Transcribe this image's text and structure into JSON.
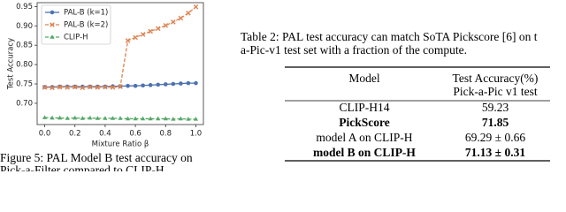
{
  "chart_data": {
    "type": "line",
    "xlabel": "Mixture Ratio β",
    "ylabel": "Test Accuracy",
    "x": [
      0,
      0.05,
      0.1,
      0.15,
      0.2,
      0.25,
      0.3,
      0.35,
      0.4,
      0.45,
      0.5,
      0.55,
      0.6,
      0.65,
      0.7,
      0.75,
      0.8,
      0.85,
      0.9,
      0.95,
      1.0
    ],
    "series": [
      {
        "name": "PAL-B (k=1)",
        "color": "#4c72b0",
        "marker": "circle",
        "dash": false,
        "values": [
          0.742,
          0.742,
          0.743,
          0.743,
          0.743,
          0.743,
          0.743,
          0.743,
          0.743,
          0.744,
          0.744,
          0.745,
          0.745,
          0.746,
          0.747,
          0.748,
          0.749,
          0.75,
          0.751,
          0.752,
          0.752
        ]
      },
      {
        "name": "PAL-B (k=2)",
        "color": "#dd8452",
        "marker": "x",
        "dash": true,
        "values": [
          0.741,
          0.74,
          0.742,
          0.741,
          0.742,
          0.74,
          0.742,
          0.741,
          0.742,
          0.741,
          0.743,
          0.862,
          0.87,
          0.878,
          0.886,
          0.893,
          0.901,
          0.91,
          0.92,
          0.933,
          0.949
        ]
      },
      {
        "name": "CLIP-H",
        "color": "#55a868",
        "marker": "triangle",
        "dash": true,
        "values": [
          0.663,
          0.662,
          0.662,
          0.661,
          0.662,
          0.661,
          0.662,
          0.661,
          0.661,
          0.661,
          0.661,
          0.66,
          0.66,
          0.66,
          0.66,
          0.66,
          0.66,
          0.659,
          0.66,
          0.659,
          0.659
        ]
      }
    ],
    "xlim": [
      -0.05,
      1.05
    ],
    "ylim": [
      0.645,
      0.96
    ],
    "xticks": [
      {
        "value": 0,
        "label": "0.0"
      },
      0.2,
      0.4,
      0.6,
      0.8,
      {
        "value": 1,
        "label": "1.0"
      }
    ],
    "yticks": [
      {
        "value": 0.7,
        "label": "0.70"
      },
      0.75,
      {
        "value": 0.8,
        "label": "0.80"
      },
      0.85,
      {
        "value": 0.9,
        "label": "0.90"
      },
      0.95
    ],
    "legend": "upper left"
  },
  "figure_caption": [
    "Figure 5: PAL Model B test accuracy on",
    "Pick-a-Filter compared to CLIP-H."
  ],
  "table": {
    "caption": [
      "Table 2: PAL test accuracy can match SoTA Pickscore [6] on t",
      "a-Pic-v1 test set with a fraction of the compute."
    ],
    "header": [
      "Model",
      "Test Accuracy(%)",
      "Pick-a-Pic v1 test"
    ],
    "rows": [
      {
        "model": "CLIP-H14",
        "accuracy": "59.23",
        "bold": false
      },
      {
        "model": "PickScore",
        "accuracy": "71.85",
        "bold": true
      },
      {
        "model": "model A on CLIP-H",
        "accuracy": "69.29 ± 0.66",
        "bold": false
      },
      {
        "model": "model B on CLIP-H",
        "accuracy": "71.13 ± 0.31",
        "bold": true
      }
    ]
  }
}
